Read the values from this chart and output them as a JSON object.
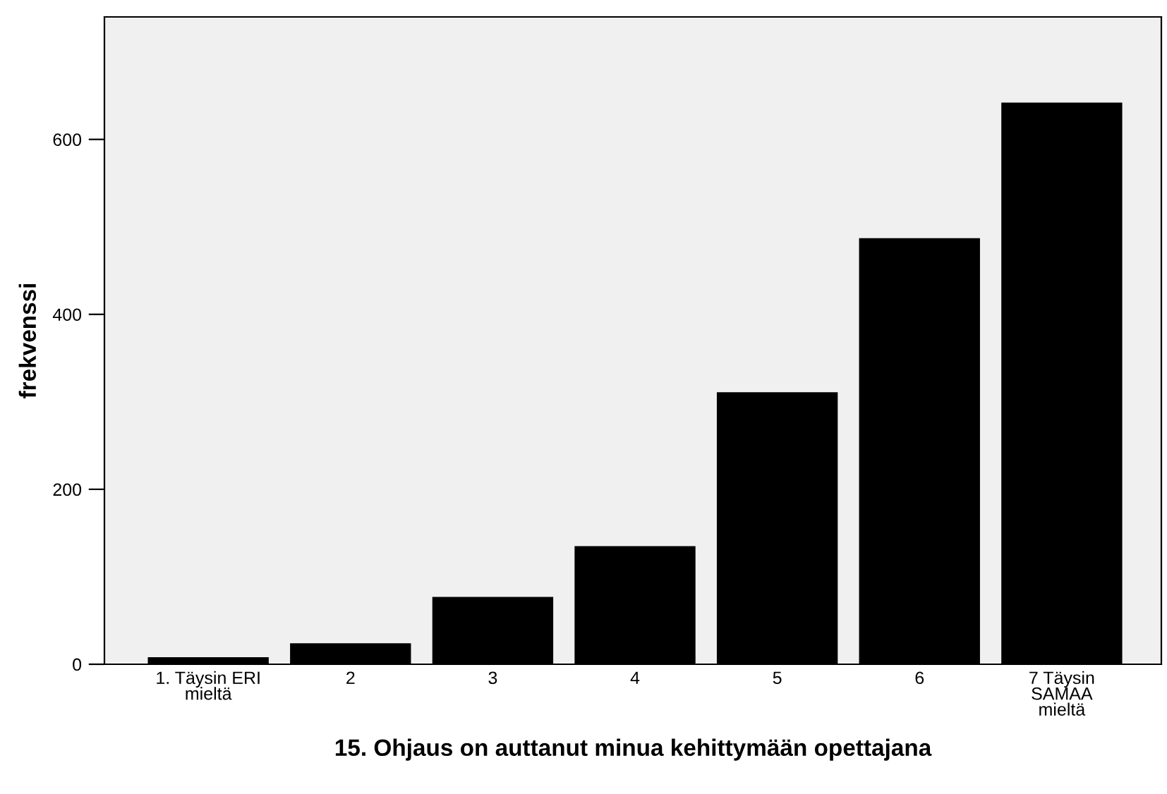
{
  "chart_data": {
    "type": "bar",
    "xlabel": "15. Ohjaus on auttanut minua kehittymään opettajana",
    "ylabel": "frekvenssi",
    "categories": [
      "1. Täysin ERI\nmieltä",
      "2",
      "3",
      "4",
      "5",
      "6",
      "7 Täysin\nSAMAA\nmieltä"
    ],
    "values": [
      8,
      24,
      77,
      135,
      311,
      487,
      642
    ],
    "color": "#000000",
    "ylim": [
      0,
      740
    ],
    "yticks": [
      0,
      200,
      400,
      600
    ],
    "grid": false
  }
}
